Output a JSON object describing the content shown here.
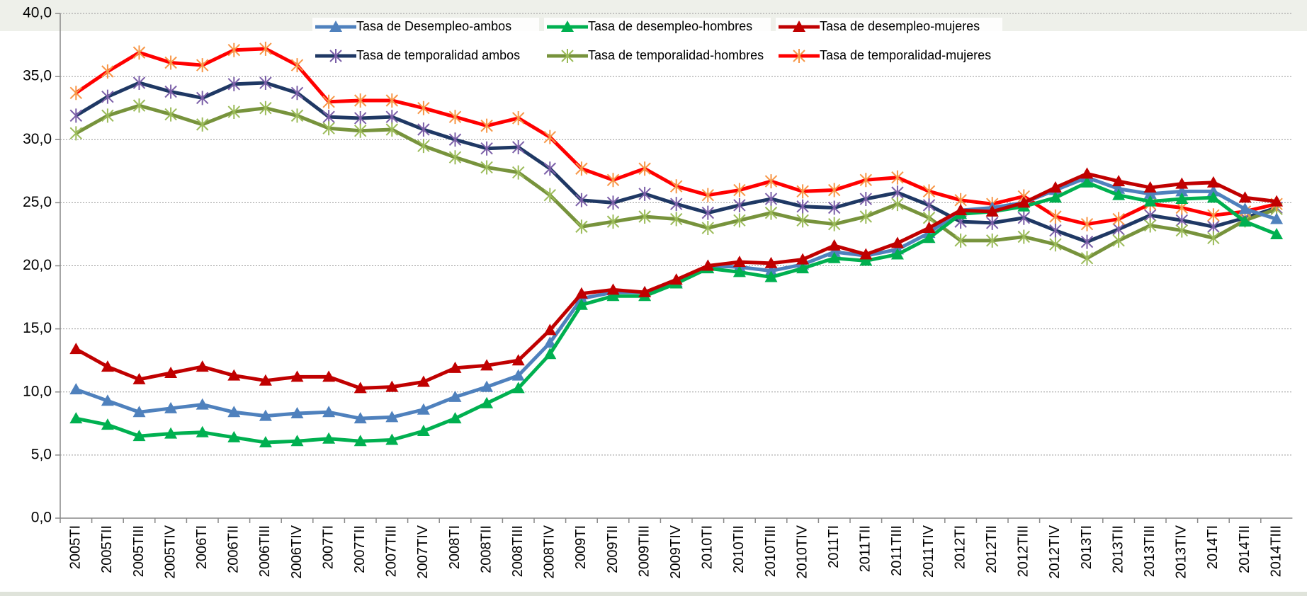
{
  "chart_data": {
    "type": "line",
    "categories": [
      "2005TI",
      "2005TII",
      "2005TIII",
      "2005TIV",
      "2006TI",
      "2006TII",
      "2006TIII",
      "2006TIV",
      "2007TI",
      "2007TII",
      "2007TIII",
      "2007TIV",
      "2008TI",
      "2008TII",
      "2008TIII",
      "2008TIV",
      "2009TI",
      "2009TII",
      "2009TIII",
      "2009TIV",
      "2010TI",
      "2010TII",
      "2010TIII",
      "2010TIV",
      "2011TI",
      "2011TII",
      "2011TIII",
      "2011TIV",
      "2012TI",
      "2012TII",
      "2012TIII",
      "2012TIV",
      "2013TI",
      "2013TII",
      "2013TIII",
      "2013TIV",
      "2014TI",
      "2014TII",
      "2014TIII"
    ],
    "series": [
      {
        "name": "Tasa de Desempleo-ambos",
        "color": "#4f81bd",
        "marker": "triangle",
        "marker_color": "#4f81bd",
        "values": [
          10.2,
          9.3,
          8.4,
          8.7,
          9.0,
          8.4,
          8.1,
          8.3,
          8.4,
          7.9,
          8.0,
          8.6,
          9.6,
          10.4,
          11.3,
          13.9,
          17.4,
          17.9,
          17.9,
          18.7,
          20.0,
          19.9,
          19.6,
          20.1,
          21.1,
          20.8,
          21.3,
          22.6,
          24.4,
          24.6,
          25.0,
          26.0,
          27.0,
          26.1,
          25.7,
          25.9,
          25.9,
          24.5,
          23.7
        ]
      },
      {
        "name": "Tasa de desempleo-hombres",
        "color": "#00b050",
        "marker": "triangle",
        "marker_color": "#00b050",
        "values": [
          7.9,
          7.4,
          6.5,
          6.7,
          6.8,
          6.4,
          6.0,
          6.1,
          6.3,
          6.1,
          6.2,
          6.9,
          7.9,
          9.1,
          10.3,
          13.0,
          16.9,
          17.6,
          17.6,
          18.6,
          19.8,
          19.5,
          19.1,
          19.8,
          20.6,
          20.4,
          20.9,
          22.2,
          24.1,
          24.3,
          24.7,
          25.4,
          26.6,
          25.6,
          25.1,
          25.3,
          25.4,
          23.5,
          22.5
        ]
      },
      {
        "name": "Tasa de desempleo-mujeres",
        "color": "#c00000",
        "marker": "triangle",
        "marker_color": "#c00000",
        "values": [
          13.4,
          12.0,
          11.0,
          11.5,
          12.0,
          11.3,
          10.9,
          11.2,
          11.2,
          10.3,
          10.4,
          10.8,
          11.9,
          12.1,
          12.5,
          14.9,
          17.8,
          18.1,
          17.9,
          18.9,
          20.0,
          20.3,
          20.2,
          20.5,
          21.6,
          20.9,
          21.8,
          23.0,
          24.4,
          24.3,
          25.0,
          26.2,
          27.3,
          26.7,
          26.2,
          26.5,
          26.6,
          25.4,
          25.1
        ]
      },
      {
        "name": "Tasa de temporalidad ambos",
        "color": "#1f3864",
        "marker": "star",
        "marker_color": "#7b5fa8",
        "values": [
          31.9,
          33.4,
          34.5,
          33.8,
          33.3,
          34.4,
          34.5,
          33.7,
          31.8,
          31.7,
          31.8,
          30.8,
          30.0,
          29.3,
          29.4,
          27.7,
          25.2,
          25.0,
          25.7,
          24.9,
          24.2,
          24.8,
          25.3,
          24.7,
          24.6,
          25.3,
          25.8,
          24.8,
          23.5,
          23.4,
          23.8,
          22.8,
          21.9,
          22.9,
          24.0,
          23.6,
          23.1,
          23.8,
          24.6
        ]
      },
      {
        "name": "Tasa de temporalidad-hombres",
        "color": "#77933c",
        "marker": "star",
        "marker_color": "#9bbb59",
        "values": [
          30.5,
          31.9,
          32.7,
          32.0,
          31.2,
          32.2,
          32.5,
          31.9,
          30.9,
          30.7,
          30.8,
          29.5,
          28.6,
          27.8,
          27.4,
          25.6,
          23.1,
          23.5,
          23.9,
          23.7,
          23.0,
          23.6,
          24.2,
          23.6,
          23.3,
          23.9,
          24.9,
          23.8,
          22.0,
          22.0,
          22.3,
          21.7,
          20.6,
          22.0,
          23.2,
          22.8,
          22.2,
          23.6,
          24.5
        ]
      },
      {
        "name": "Tasa de temporalidad-mujeres",
        "color": "#ff0000",
        "marker": "star",
        "marker_color": "#f79646",
        "values": [
          33.7,
          35.4,
          36.9,
          36.1,
          35.9,
          37.1,
          37.2,
          35.9,
          33.0,
          33.1,
          33.1,
          32.5,
          31.8,
          31.1,
          31.7,
          30.2,
          27.7,
          26.8,
          27.7,
          26.3,
          25.6,
          26.0,
          26.7,
          25.9,
          26.0,
          26.8,
          27.0,
          25.9,
          25.2,
          24.9,
          25.5,
          23.9,
          23.3,
          23.7,
          24.9,
          24.6,
          24.0,
          24.3,
          24.9
        ]
      }
    ],
    "ylim": [
      0,
      40
    ],
    "yticks": [
      {
        "value": 0,
        "label": "0,0"
      },
      {
        "value": 5,
        "label": "5,0"
      },
      {
        "value": 10,
        "label": "10,0"
      },
      {
        "value": 15,
        "label": "15,0"
      },
      {
        "value": 20,
        "label": "20,0"
      },
      {
        "value": 25,
        "label": "25,0"
      },
      {
        "value": 30,
        "label": "30,0"
      },
      {
        "value": 35,
        "label": "35,0"
      },
      {
        "value": 40,
        "label": "40,0"
      }
    ],
    "grid": true,
    "legend": "top"
  }
}
